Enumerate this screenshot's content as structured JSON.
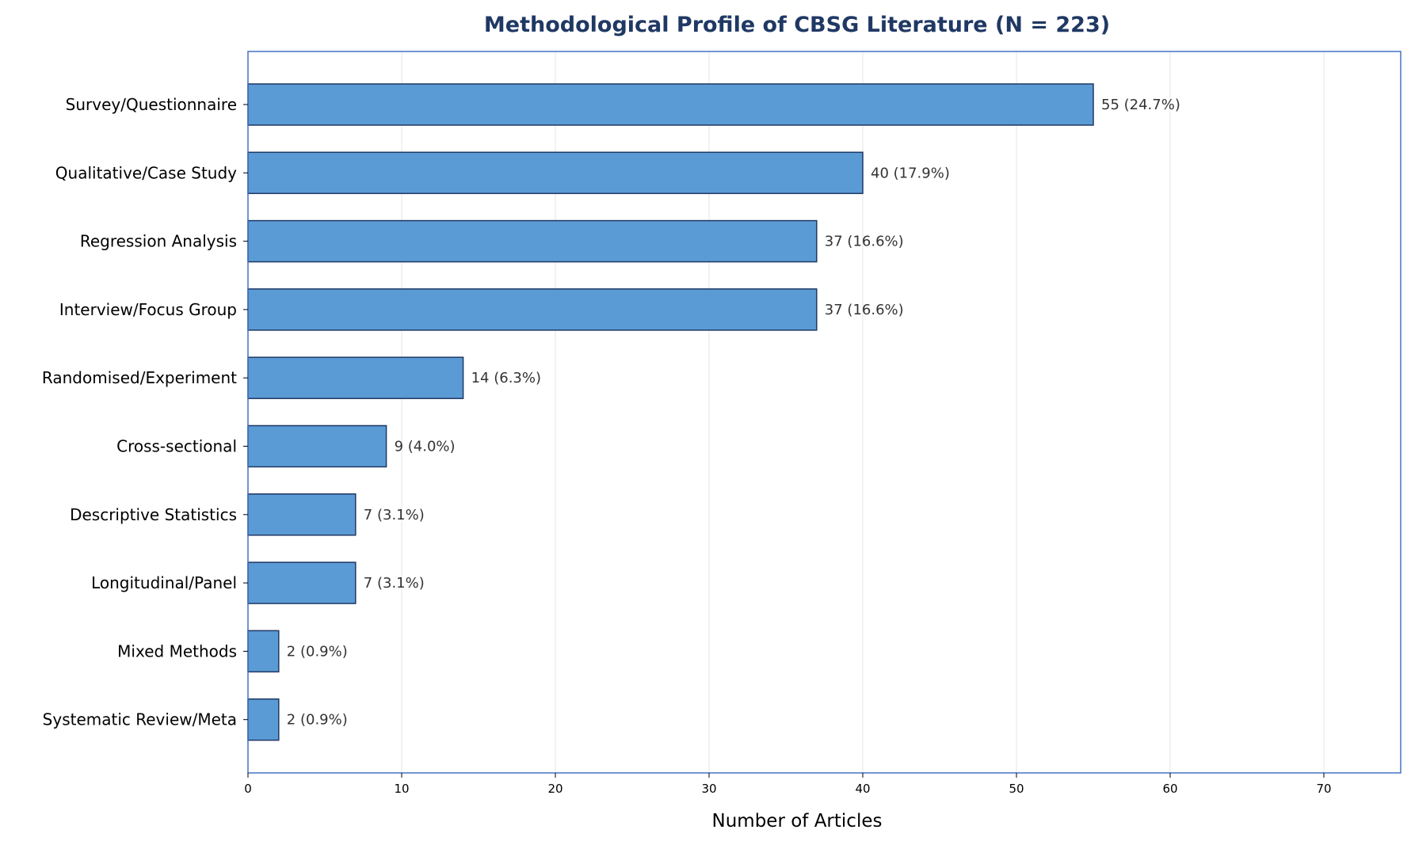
{
  "colors": {
    "bar_fill": "#5b9bd5",
    "bar_edge": "#1f3864",
    "title": "#1f3864",
    "axes_frame": "#4472c4",
    "grid": "#e6e6e6",
    "data_label": "#333333"
  },
  "chart_data": {
    "type": "bar",
    "orientation": "horizontal",
    "title": "Methodological Profile of CBSG Literature (N = 223)",
    "xlabel": "Number of Articles",
    "ylabel": "",
    "xlim": [
      0,
      75
    ],
    "xticks": [
      0,
      10,
      20,
      30,
      40,
      50,
      60,
      70
    ],
    "grid": "vertical",
    "categories": [
      "Survey/Questionnaire",
      "Qualitative/Case Study",
      "Regression Analysis",
      "Interview/Focus Group",
      "Randomised/Experiment",
      "Cross-sectional",
      "Descriptive Statistics",
      "Longitudinal/Panel",
      "Mixed Methods",
      "Systematic Review/Meta"
    ],
    "values": [
      55,
      40,
      37,
      37,
      14,
      9,
      7,
      7,
      2,
      2
    ],
    "value_labels": [
      "55 (24.7%)",
      "40 (17.9%)",
      "37 (16.6%)",
      "37 (16.6%)",
      "14 (6.3%)",
      "9 (4.0%)",
      "7 (3.1%)",
      "7 (3.1%)",
      "2 (0.9%)",
      "2 (0.9%)"
    ]
  }
}
